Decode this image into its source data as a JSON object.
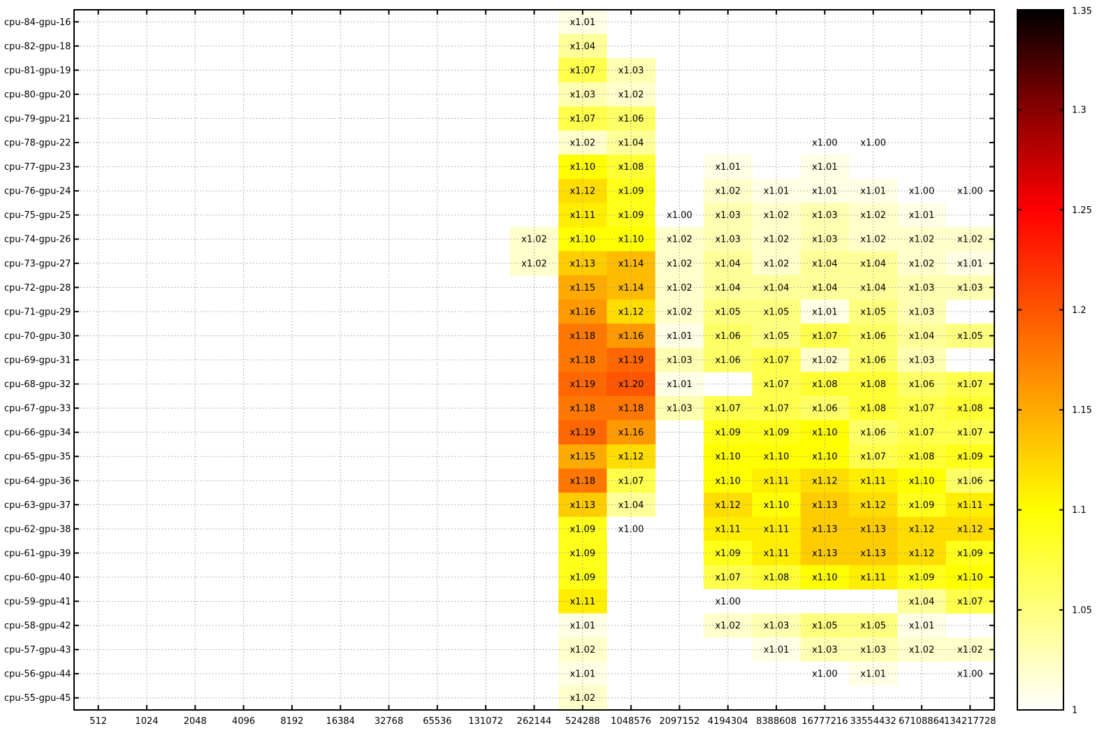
{
  "chart_data": {
    "type": "heatmap",
    "title": "",
    "xlabel": "",
    "ylabel": "",
    "grid": true,
    "value_prefix": "x",
    "x_categories": [
      "512",
      "1024",
      "2048",
      "4096",
      "8192",
      "16384",
      "32768",
      "65536",
      "131072",
      "262144",
      "524288",
      "1048576",
      "2097152",
      "4194304",
      "8388608",
      "16777216",
      "33554432",
      "67108864",
      "134217728"
    ],
    "y_categories": [
      "cpu-84-gpu-16",
      "cpu-82-gpu-18",
      "cpu-81-gpu-19",
      "cpu-80-gpu-20",
      "cpu-79-gpu-21",
      "cpu-78-gpu-22",
      "cpu-77-gpu-23",
      "cpu-76-gpu-24",
      "cpu-75-gpu-25",
      "cpu-74-gpu-26",
      "cpu-73-gpu-27",
      "cpu-72-gpu-28",
      "cpu-71-gpu-29",
      "cpu-70-gpu-30",
      "cpu-69-gpu-31",
      "cpu-68-gpu-32",
      "cpu-67-gpu-33",
      "cpu-66-gpu-34",
      "cpu-65-gpu-35",
      "cpu-64-gpu-36",
      "cpu-63-gpu-37",
      "cpu-62-gpu-38",
      "cpu-61-gpu-39",
      "cpu-60-gpu-40",
      "cpu-59-gpu-41",
      "cpu-58-gpu-42",
      "cpu-57-gpu-43",
      "cpu-56-gpu-44",
      "cpu-55-gpu-45"
    ],
    "values": [
      [
        null,
        null,
        null,
        null,
        null,
        null,
        null,
        null,
        null,
        null,
        1.01,
        null,
        null,
        null,
        null,
        null,
        null,
        null,
        null
      ],
      [
        null,
        null,
        null,
        null,
        null,
        null,
        null,
        null,
        null,
        null,
        1.04,
        null,
        null,
        null,
        null,
        null,
        null,
        null,
        null
      ],
      [
        null,
        null,
        null,
        null,
        null,
        null,
        null,
        null,
        null,
        null,
        1.07,
        1.03,
        null,
        null,
        null,
        null,
        null,
        null,
        null
      ],
      [
        null,
        null,
        null,
        null,
        null,
        null,
        null,
        null,
        null,
        null,
        1.03,
        1.02,
        null,
        null,
        null,
        null,
        null,
        null,
        null
      ],
      [
        null,
        null,
        null,
        null,
        null,
        null,
        null,
        null,
        null,
        null,
        1.07,
        1.06,
        null,
        null,
        null,
        null,
        null,
        null,
        null
      ],
      [
        null,
        null,
        null,
        null,
        null,
        null,
        null,
        null,
        null,
        null,
        1.02,
        1.04,
        null,
        null,
        null,
        1.0,
        1.0,
        null,
        null
      ],
      [
        null,
        null,
        null,
        null,
        null,
        null,
        null,
        null,
        null,
        null,
        1.1,
        1.08,
        null,
        1.01,
        null,
        1.01,
        null,
        null,
        null
      ],
      [
        null,
        null,
        null,
        null,
        null,
        null,
        null,
        null,
        null,
        null,
        1.12,
        1.09,
        null,
        1.02,
        1.01,
        1.01,
        1.01,
        1.0,
        1.0
      ],
      [
        null,
        null,
        null,
        null,
        null,
        null,
        null,
        null,
        null,
        null,
        1.11,
        1.09,
        1.0,
        1.03,
        1.02,
        1.03,
        1.02,
        1.01,
        null
      ],
      [
        null,
        null,
        null,
        null,
        null,
        null,
        null,
        null,
        null,
        1.02,
        1.1,
        1.1,
        1.02,
        1.03,
        1.02,
        1.03,
        1.02,
        1.02,
        1.02
      ],
      [
        null,
        null,
        null,
        null,
        null,
        null,
        null,
        null,
        null,
        1.02,
        1.13,
        1.14,
        1.02,
        1.04,
        1.02,
        1.04,
        1.04,
        1.02,
        1.01
      ],
      [
        null,
        null,
        null,
        null,
        null,
        null,
        null,
        null,
        null,
        null,
        1.15,
        1.14,
        1.02,
        1.04,
        1.04,
        1.04,
        1.04,
        1.03,
        1.03
      ],
      [
        null,
        null,
        null,
        null,
        null,
        null,
        null,
        null,
        null,
        null,
        1.16,
        1.12,
        1.02,
        1.05,
        1.05,
        1.01,
        1.05,
        1.03,
        null
      ],
      [
        null,
        null,
        null,
        null,
        null,
        null,
        null,
        null,
        null,
        null,
        1.18,
        1.16,
        1.01,
        1.06,
        1.05,
        1.07,
        1.06,
        1.04,
        1.05
      ],
      [
        null,
        null,
        null,
        null,
        null,
        null,
        null,
        null,
        null,
        null,
        1.18,
        1.19,
        1.03,
        1.06,
        1.07,
        1.02,
        1.06,
        1.03,
        null
      ],
      [
        null,
        null,
        null,
        null,
        null,
        null,
        null,
        null,
        null,
        null,
        1.19,
        1.2,
        1.01,
        null,
        1.07,
        1.08,
        1.08,
        1.06,
        1.07
      ],
      [
        null,
        null,
        null,
        null,
        null,
        null,
        null,
        null,
        null,
        null,
        1.18,
        1.18,
        1.03,
        1.07,
        1.07,
        1.06,
        1.08,
        1.07,
        1.08
      ],
      [
        null,
        null,
        null,
        null,
        null,
        null,
        null,
        null,
        null,
        null,
        1.19,
        1.16,
        null,
        1.09,
        1.09,
        1.1,
        1.06,
        1.07,
        1.07
      ],
      [
        null,
        null,
        null,
        null,
        null,
        null,
        null,
        null,
        null,
        null,
        1.15,
        1.12,
        null,
        1.1,
        1.1,
        1.1,
        1.07,
        1.08,
        1.09
      ],
      [
        null,
        null,
        null,
        null,
        null,
        null,
        null,
        null,
        null,
        null,
        1.18,
        1.07,
        null,
        1.1,
        1.11,
        1.12,
        1.11,
        1.1,
        1.06
      ],
      [
        null,
        null,
        null,
        null,
        null,
        null,
        null,
        null,
        null,
        null,
        1.13,
        1.04,
        null,
        1.12,
        1.1,
        1.13,
        1.12,
        1.09,
        1.11
      ],
      [
        null,
        null,
        null,
        null,
        null,
        null,
        null,
        null,
        null,
        null,
        1.09,
        1.0,
        null,
        1.11,
        1.11,
        1.13,
        1.13,
        1.12,
        1.12
      ],
      [
        null,
        null,
        null,
        null,
        null,
        null,
        null,
        null,
        null,
        null,
        1.09,
        null,
        null,
        1.09,
        1.11,
        1.13,
        1.13,
        1.12,
        1.09
      ],
      [
        null,
        null,
        null,
        null,
        null,
        null,
        null,
        null,
        null,
        null,
        1.09,
        null,
        null,
        1.07,
        1.08,
        1.1,
        1.11,
        1.09,
        1.1
      ],
      [
        null,
        null,
        null,
        null,
        null,
        null,
        null,
        null,
        null,
        null,
        1.11,
        null,
        null,
        1.0,
        null,
        null,
        null,
        1.04,
        1.07
      ],
      [
        null,
        null,
        null,
        null,
        null,
        null,
        null,
        null,
        null,
        null,
        1.01,
        null,
        null,
        1.02,
        1.03,
        1.05,
        1.05,
        1.01,
        null
      ],
      [
        null,
        null,
        null,
        null,
        null,
        null,
        null,
        null,
        null,
        null,
        1.02,
        null,
        null,
        null,
        1.01,
        1.03,
        1.03,
        1.02,
        1.02
      ],
      [
        null,
        null,
        null,
        null,
        null,
        null,
        null,
        null,
        null,
        null,
        1.01,
        null,
        null,
        null,
        null,
        1.0,
        1.01,
        null,
        1.0
      ],
      [
        null,
        null,
        null,
        null,
        null,
        null,
        null,
        null,
        null,
        null,
        1.02,
        null,
        null,
        null,
        null,
        null,
        null,
        null,
        null
      ]
    ],
    "colorbar": {
      "min": 1,
      "max": 1.35,
      "ticks": [
        "1",
        "1.05",
        "1.1",
        "1.15",
        "1.2",
        "1.25",
        "1.3",
        "1.35"
      ],
      "colormap": "white-yellow-orange-red-black"
    }
  }
}
